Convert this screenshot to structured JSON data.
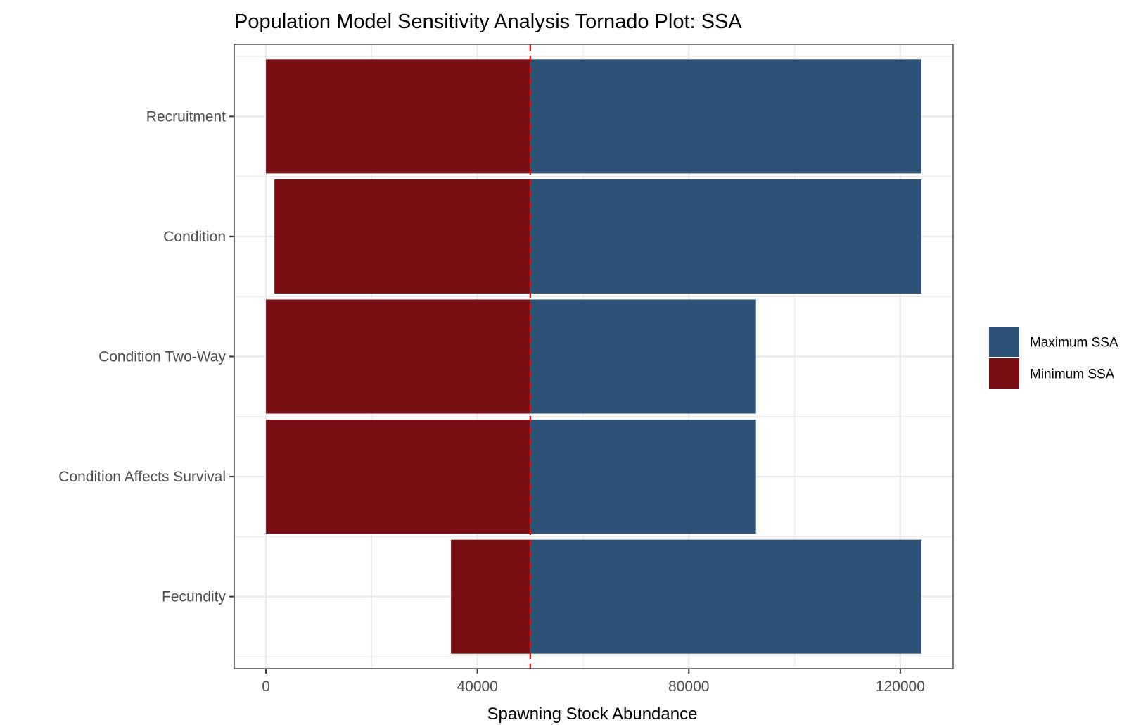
{
  "chart_data": {
    "type": "bar",
    "orientation": "horizontal",
    "variant": "tornado",
    "title": "Population Model Sensitivity Analysis Tornado Plot: SSA",
    "xlabel": "Spawning Stock Abundance",
    "ylabel": "",
    "xlim": [
      -6000,
      130000
    ],
    "x_ticks": [
      0,
      40000,
      80000,
      120000
    ],
    "x_tick_labels": [
      "0",
      "40000",
      "80000",
      "120000"
    ],
    "baseline": 50000,
    "baseline_style": "dashed",
    "baseline_color": "#ff0000",
    "categories": [
      "Recruitment",
      "Condition",
      "Condition Two-Way",
      "Condition Affects Survival",
      "Fecundity"
    ],
    "series": [
      {
        "name": "Maximum SSA",
        "color": "#2d5278",
        "values": [
          124000,
          124000,
          92700,
          92700,
          124000
        ]
      },
      {
        "name": "Minimum SSA",
        "color": "#7a1016",
        "values": [
          0,
          1600,
          0,
          0,
          35000
        ]
      }
    ],
    "grid": true,
    "legend_position": "right"
  }
}
